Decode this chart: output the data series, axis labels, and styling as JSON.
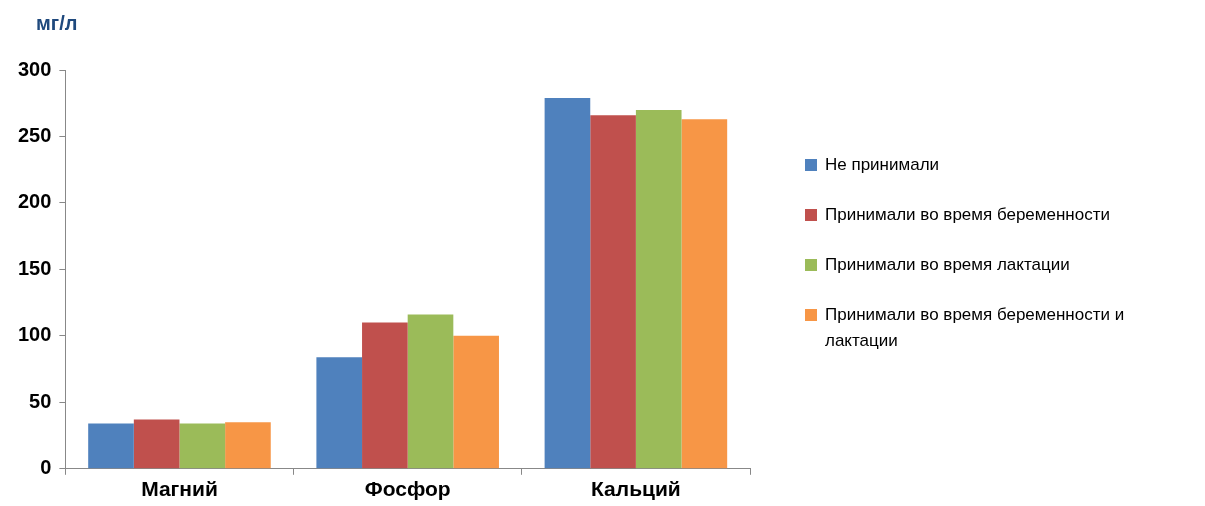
{
  "chart_data": {
    "type": "bar",
    "ylabel": "мг/л",
    "categories": [
      "Магний",
      "Фосфор",
      "Кальций"
    ],
    "series": [
      {
        "name": "Не принимали",
        "color": "#4f81bd",
        "values": [
          34,
          84,
          279
        ]
      },
      {
        "name": "Принимали во время беременности",
        "color": "#c0504d",
        "values": [
          37,
          110,
          266
        ]
      },
      {
        "name": "Принимали во время лактации",
        "color": "#9bbb59",
        "values": [
          34,
          116,
          270
        ]
      },
      {
        "name": "Принимали во время беременности и лактации",
        "color": "#f79646",
        "values": [
          35,
          100,
          263
        ]
      }
    ],
    "ylim": [
      0,
      300
    ],
    "yticks": [
      0,
      50,
      100,
      150,
      200,
      250,
      300
    ],
    "grid": false,
    "legend": "right"
  }
}
